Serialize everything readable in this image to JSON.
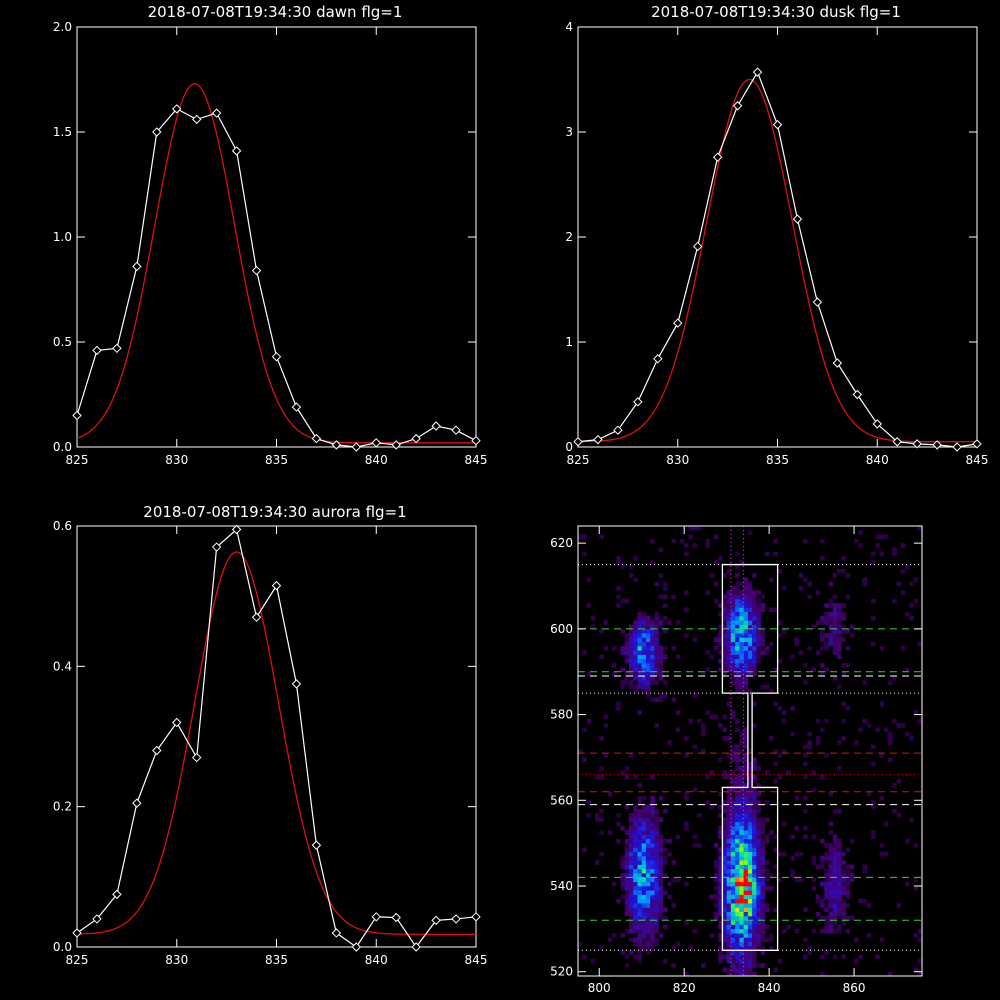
{
  "colors": {
    "background": "#000000",
    "axes": "#ffffff",
    "data": "#ffffff",
    "fit": "#dd1010",
    "green_line": "#3bd13b",
    "red_line": "#d01818",
    "magenta_line": "#d24cd2",
    "white_line": "#ffffff"
  },
  "chart_data": [
    {
      "id": "dawn",
      "type": "line",
      "title": "2018-07-08T19:34:30 dawn flg=1",
      "xlim": [
        825,
        845
      ],
      "ylim": [
        0,
        2.0
      ],
      "xticks": [
        825,
        830,
        835,
        840,
        845
      ],
      "yticks": [
        0,
        0.5,
        1.0,
        1.5,
        2.0
      ],
      "ytick_labels": [
        "0.0",
        "0.5",
        "1.0",
        "1.5",
        "2.0"
      ],
      "data_x": [
        825,
        826,
        827,
        828,
        829,
        830,
        831,
        832,
        833,
        834,
        835,
        836,
        837,
        838,
        839,
        840,
        841,
        842,
        843,
        844,
        845
      ],
      "data_y": [
        0.15,
        0.46,
        0.47,
        0.86,
        1.5,
        1.61,
        1.56,
        1.59,
        1.41,
        0.84,
        0.43,
        0.19,
        0.04,
        0.01,
        0.0,
        0.02,
        0.01,
        0.04,
        0.1,
        0.08,
        0.03
      ],
      "fit": {
        "amplitude": 1.71,
        "center": 830.9,
        "sigma": 2.0,
        "offset": 0.02
      }
    },
    {
      "id": "dusk",
      "type": "line",
      "title": "2018-07-08T19:34:30 dusk flg=1",
      "xlim": [
        825,
        845
      ],
      "ylim": [
        0,
        4
      ],
      "xticks": [
        825,
        830,
        835,
        840,
        845
      ],
      "yticks": [
        0,
        1,
        2,
        3,
        4
      ],
      "ytick_labels": [
        "0",
        "1",
        "2",
        "3",
        "4"
      ],
      "data_x": [
        825,
        826,
        827,
        828,
        829,
        830,
        831,
        832,
        833,
        834,
        835,
        836,
        837,
        838,
        839,
        840,
        841,
        842,
        843,
        844,
        845
      ],
      "data_y": [
        0.05,
        0.07,
        0.16,
        0.43,
        0.84,
        1.18,
        1.91,
        2.76,
        3.25,
        3.57,
        3.07,
        2.17,
        1.38,
        0.8,
        0.5,
        0.22,
        0.05,
        0.03,
        0.02,
        0.0,
        0.03
      ],
      "fit": {
        "amplitude": 3.45,
        "center": 833.6,
        "sigma": 2.15,
        "offset": 0.05
      }
    },
    {
      "id": "aurora",
      "type": "line",
      "title": "2018-07-08T19:34:30 aurora flg=1",
      "xlim": [
        825,
        845
      ],
      "ylim": [
        0,
        0.6
      ],
      "xticks": [
        825,
        830,
        835,
        840,
        845
      ],
      "yticks": [
        0,
        0.2,
        0.4,
        0.6
      ],
      "ytick_labels": [
        "0.0",
        "0.2",
        "0.4",
        "0.6"
      ],
      "data_x": [
        825,
        826,
        827,
        828,
        829,
        830,
        831,
        832,
        833,
        834,
        835,
        836,
        837,
        838,
        839,
        840,
        841,
        842,
        843,
        844,
        845
      ],
      "data_y": [
        0.02,
        0.04,
        0.075,
        0.205,
        0.28,
        0.32,
        0.27,
        0.57,
        0.595,
        0.47,
        0.515,
        0.375,
        0.145,
        0.02,
        0.0,
        0.043,
        0.042,
        0.0,
        0.038,
        0.04,
        0.043
      ],
      "fit": {
        "amplitude": 0.545,
        "center": 833.0,
        "sigma": 2.1,
        "offset": 0.018
      }
    },
    {
      "id": "image",
      "type": "heatmap",
      "title": "",
      "xlim": [
        795,
        876
      ],
      "ylim": [
        519,
        624
      ],
      "xticks": [
        800,
        820,
        840,
        860
      ],
      "yticks": [
        520,
        540,
        560,
        580,
        600,
        620
      ],
      "hlines": [
        {
          "y": 600,
          "color": "green_line",
          "style": "dash"
        },
        {
          "y": 590,
          "color": "green_line",
          "style": "dash"
        },
        {
          "y": 589,
          "color": "white_line",
          "style": "dash"
        },
        {
          "y": 571,
          "color": "red_line",
          "style": "dash"
        },
        {
          "y": 562,
          "color": "red_line",
          "style": "dash"
        },
        {
          "y": 559,
          "color": "white_line",
          "style": "dash"
        },
        {
          "y": 542,
          "color": "green_line",
          "style": "dash"
        },
        {
          "y": 532,
          "color": "green_line",
          "style": "dash"
        },
        {
          "y": 615,
          "color": "white_line",
          "style": "dot"
        },
        {
          "y": 585,
          "color": "white_line",
          "style": "dot"
        },
        {
          "y": 566,
          "color": "red_line",
          "style": "dot"
        },
        {
          "y": 525,
          "color": "white_line",
          "style": "dot"
        }
      ],
      "vlines": [
        {
          "x": 831,
          "color": "magenta_line",
          "style": "dot"
        },
        {
          "x": 834,
          "color": "magenta_line",
          "style": "dot"
        }
      ],
      "outline": [
        [
          829,
          615
        ],
        [
          842,
          615
        ],
        [
          842,
          585
        ],
        [
          836,
          585
        ],
        [
          836,
          563
        ],
        [
          842,
          563
        ],
        [
          842,
          525
        ],
        [
          829,
          525
        ],
        [
          829,
          563
        ],
        [
          835,
          563
        ],
        [
          835,
          585
        ],
        [
          829,
          585
        ]
      ],
      "blobs": [
        {
          "x": 810,
          "y": 594,
          "sx": 2.5,
          "sy": 5,
          "a": 0.42
        },
        {
          "x": 833,
          "y": 598,
          "sx": 2.6,
          "sy": 6,
          "a": 0.55
        },
        {
          "x": 833,
          "y": 540,
          "sx": 2.8,
          "sy": 11,
          "a": 0.75
        },
        {
          "x": 834,
          "y": 539,
          "sx": 1.4,
          "sy": 2.5,
          "a": 0.35
        },
        {
          "x": 810,
          "y": 542,
          "sx": 2.6,
          "sy": 9,
          "a": 0.5
        },
        {
          "x": 855,
          "y": 540,
          "sx": 2.2,
          "sy": 7,
          "a": 0.2
        },
        {
          "x": 855,
          "y": 600,
          "sx": 2.5,
          "sy": 6,
          "a": 0.12
        },
        {
          "x": 833,
          "y": 570,
          "sx": 3.0,
          "sy": 6,
          "a": 0.07
        }
      ]
    }
  ]
}
